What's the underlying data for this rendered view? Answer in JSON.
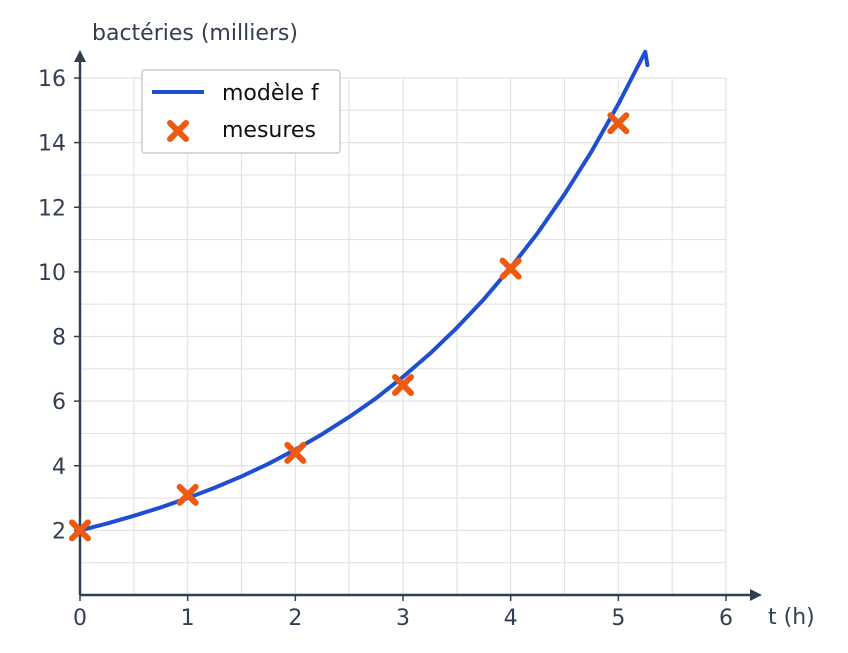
{
  "chart_data": {
    "type": "line",
    "xlabel": "t (h)",
    "ylabel": "bactéries (milliers)",
    "xlim": [
      0,
      6
    ],
    "ylim": [
      0,
      16
    ],
    "x_ticks": [
      0,
      1,
      2,
      3,
      4,
      5,
      6
    ],
    "y_ticks": [
      2,
      4,
      6,
      8,
      10,
      12,
      14,
      16
    ],
    "grid": true,
    "legend": "top-left",
    "series": [
      {
        "name": "modèle f",
        "kind": "line",
        "color": "#1f4fd1",
        "x": [
          0,
          0.25,
          0.5,
          0.75,
          1,
          1.25,
          1.5,
          1.75,
          2,
          2.25,
          2.5,
          2.75,
          3,
          3.25,
          3.5,
          3.75,
          4,
          4.25,
          4.5,
          4.75,
          5,
          5.25,
          5.27
        ],
        "y": [
          2.0,
          2.21,
          2.45,
          2.71,
          3.0,
          3.32,
          3.67,
          4.06,
          4.5,
          4.98,
          5.51,
          6.09,
          6.75,
          7.47,
          8.27,
          9.15,
          10.13,
          11.2,
          12.4,
          13.72,
          15.19,
          16.81,
          16.4
        ]
      },
      {
        "name": "mesures",
        "kind": "scatter",
        "color": "#ee5a12",
        "marker": "x",
        "x": [
          0,
          1,
          2,
          3,
          4,
          5
        ],
        "y": [
          2.0,
          3.1,
          4.4,
          6.5,
          10.1,
          14.6
        ]
      }
    ]
  }
}
